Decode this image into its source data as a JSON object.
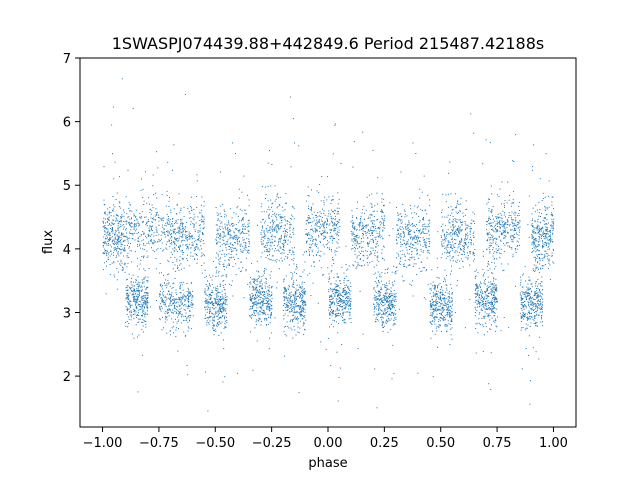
{
  "chart_data": {
    "type": "scatter",
    "title": "1SWASPJ074439.88+442849.6 Period 215487.42188s",
    "xlabel": "phase",
    "ylabel": "flux",
    "xlim": [
      -1.1,
      1.1
    ],
    "ylim": [
      1.2,
      7.0
    ],
    "x_ticks": [
      -1.0,
      -0.75,
      -0.5,
      -0.25,
      0.0,
      0.25,
      0.5,
      0.75,
      1.0
    ],
    "x_tick_labels": [
      "−1.00",
      "−0.75",
      "−0.50",
      "−0.25",
      "0.00",
      "0.25",
      "0.50",
      "0.75",
      "1.00"
    ],
    "y_ticks": [
      2,
      3,
      4,
      5,
      6,
      7
    ],
    "y_tick_labels": [
      "2",
      "3",
      "4",
      "5",
      "6",
      "7"
    ],
    "grid": false,
    "marker_color": "#1f77b4",
    "series": [
      {
        "clusters": [
          {
            "x_range": [
              -1.0,
              -0.9
            ],
            "flux_center": 4.2,
            "flux_spread": 0.45
          },
          {
            "x_range": [
              -0.9,
              -0.8
            ],
            "flux_center": 3.2,
            "flux_spread": 0.35
          },
          {
            "x_range": [
              -0.9,
              -0.7
            ],
            "flux_center": 4.3,
            "flux_spread": 0.45
          },
          {
            "x_range": [
              -0.75,
              -0.6
            ],
            "flux_center": 3.15,
            "flux_spread": 0.35
          },
          {
            "x_range": [
              -0.7,
              -0.55
            ],
            "flux_center": 4.2,
            "flux_spread": 0.45
          },
          {
            "x_range": [
              -0.55,
              -0.45
            ],
            "flux_center": 3.1,
            "flux_spread": 0.35
          },
          {
            "x_range": [
              -0.5,
              -0.35
            ],
            "flux_center": 4.2,
            "flux_spread": 0.45
          },
          {
            "x_range": [
              -0.35,
              -0.25
            ],
            "flux_center": 3.2,
            "flux_spread": 0.35
          },
          {
            "x_range": [
              -0.3,
              -0.15
            ],
            "flux_center": 4.25,
            "flux_spread": 0.5
          },
          {
            "x_range": [
              -0.2,
              -0.1
            ],
            "flux_center": 3.15,
            "flux_spread": 0.35
          },
          {
            "x_range": [
              -0.1,
              0.05
            ],
            "flux_center": 4.3,
            "flux_spread": 0.5
          },
          {
            "x_range": [
              0.0,
              0.1
            ],
            "flux_center": 3.2,
            "flux_spread": 0.35
          },
          {
            "x_range": [
              0.1,
              0.25
            ],
            "flux_center": 4.25,
            "flux_spread": 0.45
          },
          {
            "x_range": [
              0.2,
              0.3
            ],
            "flux_center": 3.15,
            "flux_spread": 0.35
          },
          {
            "x_range": [
              0.3,
              0.45
            ],
            "flux_center": 4.2,
            "flux_spread": 0.45
          },
          {
            "x_range": [
              0.45,
              0.55
            ],
            "flux_center": 3.1,
            "flux_spread": 0.35
          },
          {
            "x_range": [
              0.5,
              0.65
            ],
            "flux_center": 4.2,
            "flux_spread": 0.45
          },
          {
            "x_range": [
              0.65,
              0.75
            ],
            "flux_center": 3.2,
            "flux_spread": 0.35
          },
          {
            "x_range": [
              0.7,
              0.85
            ],
            "flux_center": 4.3,
            "flux_spread": 0.45
          },
          {
            "x_range": [
              0.85,
              0.95
            ],
            "flux_center": 3.15,
            "flux_spread": 0.35
          },
          {
            "x_range": [
              0.9,
              1.0
            ],
            "flux_center": 4.2,
            "flux_spread": 0.45
          }
        ]
      }
    ]
  }
}
